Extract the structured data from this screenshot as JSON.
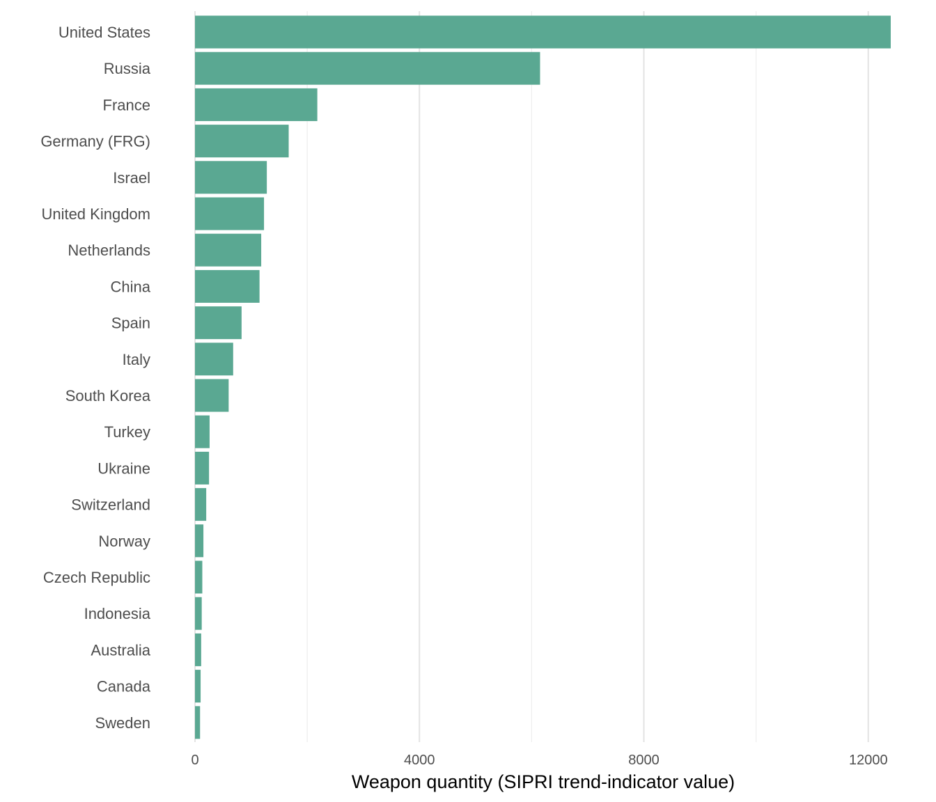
{
  "chart_data": {
    "type": "bar",
    "orientation": "horizontal",
    "xlabel": "Weapon quantity (SIPRI trend-indicator value)",
    "ylabel": "",
    "xlim": [
      0,
      12400
    ],
    "x_ticks": [
      0,
      4000,
      8000,
      12000
    ],
    "x_minor_ticks": [
      2000,
      6000,
      10000
    ],
    "grid": "vertical",
    "bar_color": "#5aa892",
    "categories": [
      "United States",
      "Russia",
      "France",
      "Germany (FRG)",
      "Israel",
      "United Kingdom",
      "Netherlands",
      "China",
      "Spain",
      "Italy",
      "South Korea",
      "Turkey",
      "Ukraine",
      "Switzerland",
      "Norway",
      "Czech Republic",
      "Indonesia",
      "Australia",
      "Canada",
      "Sweden"
    ],
    "values": [
      12400,
      6150,
      2180,
      1670,
      1280,
      1230,
      1180,
      1150,
      830,
      680,
      600,
      260,
      250,
      200,
      150,
      130,
      120,
      110,
      100,
      90
    ]
  }
}
